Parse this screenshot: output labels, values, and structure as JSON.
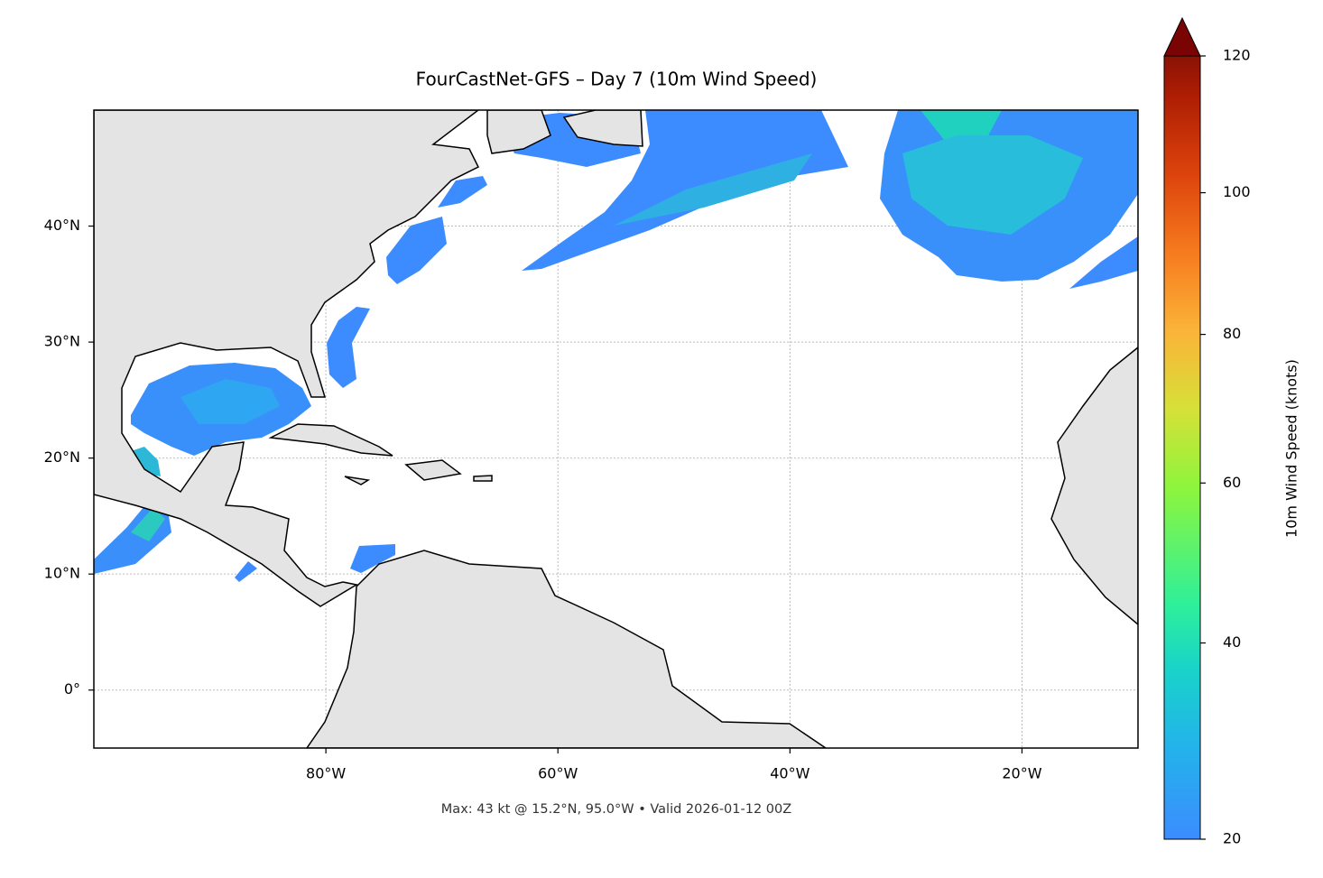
{
  "chart_data": {
    "type": "map",
    "title": "FourCastNet-GFS – Day 7 (10m Wind Speed)",
    "annotation": "Max: 43 kt @ 15.2°N, 95.0°W • Valid 2026-01-12 00Z",
    "xlim": [
      -100,
      -10
    ],
    "ylim": [
      -5,
      50
    ],
    "xticks": [
      {
        "value": -80,
        "label": "80°W"
      },
      {
        "value": -60,
        "label": "60°W"
      },
      {
        "value": -40,
        "label": "40°W"
      },
      {
        "value": -20,
        "label": "20°W"
      }
    ],
    "yticks": [
      {
        "value": 0,
        "label": "0°"
      },
      {
        "value": 10,
        "label": "10°N"
      },
      {
        "value": 20,
        "label": "20°N"
      },
      {
        "value": 30,
        "label": "30°N"
      },
      {
        "value": 40,
        "label": "40°N"
      }
    ],
    "grid": true,
    "colorbar": {
      "label": "10m Wind Speed (knots)",
      "lim": [
        20,
        120
      ],
      "ticks": [
        20,
        40,
        60,
        80,
        100,
        120
      ],
      "gamma": 0.86,
      "extend": "max"
    }
  }
}
